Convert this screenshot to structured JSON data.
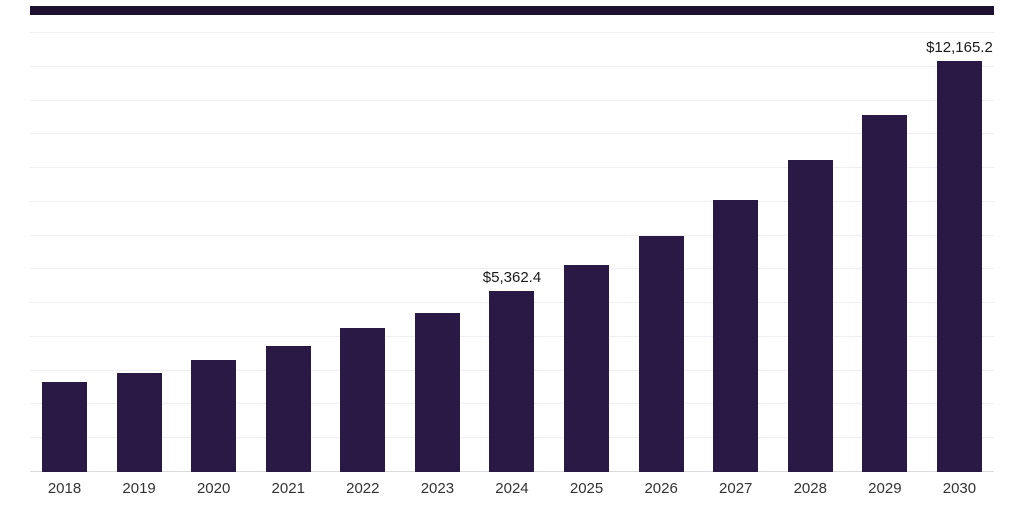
{
  "accent": {
    "top_bar_color": "#1c1130"
  },
  "chart_data": {
    "type": "bar",
    "title": "",
    "xlabel": "",
    "ylabel": "",
    "categories": [
      "2018",
      "2019",
      "2020",
      "2021",
      "2022",
      "2023",
      "2024",
      "2025",
      "2026",
      "2027",
      "2028",
      "2029",
      "2030"
    ],
    "values": [
      2670,
      2940,
      3320,
      3730,
      4270,
      4710,
      5362.4,
      6130,
      6990,
      8060,
      9240,
      10580,
      12165.2
    ],
    "annotations": [
      {
        "category": "2024",
        "text": "$5,362.4"
      },
      {
        "category": "2030",
        "text": "$12,165.2"
      }
    ],
    "bar_color": "#2b1945",
    "ylim": [
      0,
      13000
    ],
    "gridline_step": 1000,
    "grid": true,
    "legend": "none"
  }
}
